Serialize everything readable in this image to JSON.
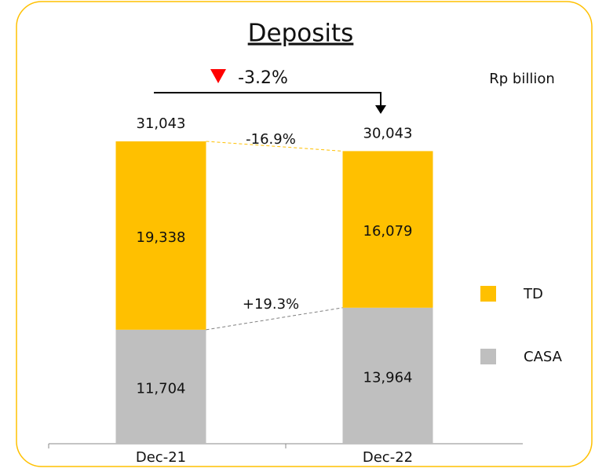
{
  "chart_data": {
    "type": "stacked_bar",
    "title": "Deposits",
    "unit_label": "Rp billion",
    "categories": [
      "Dec-21",
      "Dec-22"
    ],
    "series": [
      {
        "name": "CASA",
        "color": "#bfbfbf",
        "values": [
          11704,
          13964
        ],
        "value_labels": [
          "11,704",
          "13,964"
        ]
      },
      {
        "name": "TD",
        "color": "#ffc000",
        "values": [
          19338,
          16079
        ],
        "value_labels": [
          "19,338",
          "16,079"
        ]
      }
    ],
    "totals": [
      31043,
      30043
    ],
    "total_labels": [
      "31,043",
      "30,043"
    ],
    "annotations": [
      "-3.2%",
      "-16.9%",
      "+19.3%"
    ]
  }
}
